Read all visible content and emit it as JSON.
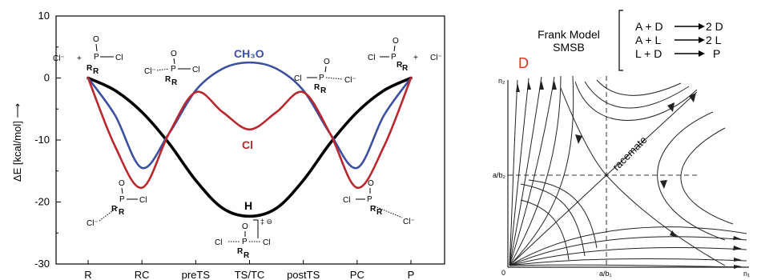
{
  "chart_data": [
    {
      "type": "line",
      "ylabel": "ΔE [kcal/mol] ⟶",
      "ylim": [
        -30,
        10
      ],
      "yticks": [
        "10",
        "0",
        "-10",
        "-20",
        "-30"
      ],
      "categories": [
        "R",
        "RC",
        "preTS",
        "TS/TC",
        "postTS",
        "PC",
        "P"
      ],
      "series": [
        {
          "name": "CH3O",
          "color": "#3b4fa0",
          "x": [
            0,
            0.5,
            1,
            1.5,
            2,
            2.5,
            3,
            3.5,
            4,
            4.5,
            5,
            5.5,
            6
          ],
          "y": [
            0,
            -6,
            -14.5,
            -9,
            -2,
            1.5,
            2.5,
            1.5,
            -2,
            -9,
            -14.5,
            -6,
            0
          ]
        },
        {
          "name": "Cl",
          "color": "#b8282e",
          "x": [
            0,
            0.5,
            1,
            1.5,
            2,
            2.5,
            3,
            3.5,
            4,
            4.5,
            5,
            5.5,
            6
          ],
          "y": [
            0,
            -11,
            -17.7,
            -9,
            -2.3,
            -5.5,
            -8.3,
            -5.5,
            -2.3,
            -9,
            -17.7,
            -11,
            0
          ]
        },
        {
          "name": "H",
          "color": "#000000",
          "x": [
            0,
            0.5,
            1,
            1.5,
            2,
            2.5,
            3,
            3.5,
            4,
            4.5,
            5,
            5.5,
            6
          ],
          "y": [
            0,
            -2,
            -5.5,
            -10.5,
            -16.5,
            -21,
            -22.3,
            -21,
            -16.5,
            -10.5,
            -5.5,
            -2,
            0
          ]
        }
      ]
    },
    {
      "type": "diagram",
      "title_lines": [
        "Frank Model",
        "SMSB"
      ],
      "reactions": [
        {
          "lhs": "A + D",
          "rhs": "2 D"
        },
        {
          "lhs": "A + L",
          "rhs": "2 L"
        },
        {
          "lhs": "L + D",
          "rhs": "P"
        }
      ],
      "corner_label": "D",
      "center_label": "racemate",
      "axis_labels": {
        "y_top": "n₂",
        "y_mid": "a/b₂",
        "origin": "0",
        "x_mid": "a/b₁",
        "x_right": "n₁"
      }
    }
  ],
  "labels": {
    "series_ch3o": "CH₃O",
    "series_cl": "Cl",
    "series_h": "H",
    "ts_symbol": "‡ ⊖"
  },
  "molecules": {
    "O": "O",
    "P": "P",
    "R": "R",
    "Cl": "Cl",
    "Cl_minus": "Cl⁻",
    "plus": "+"
  }
}
